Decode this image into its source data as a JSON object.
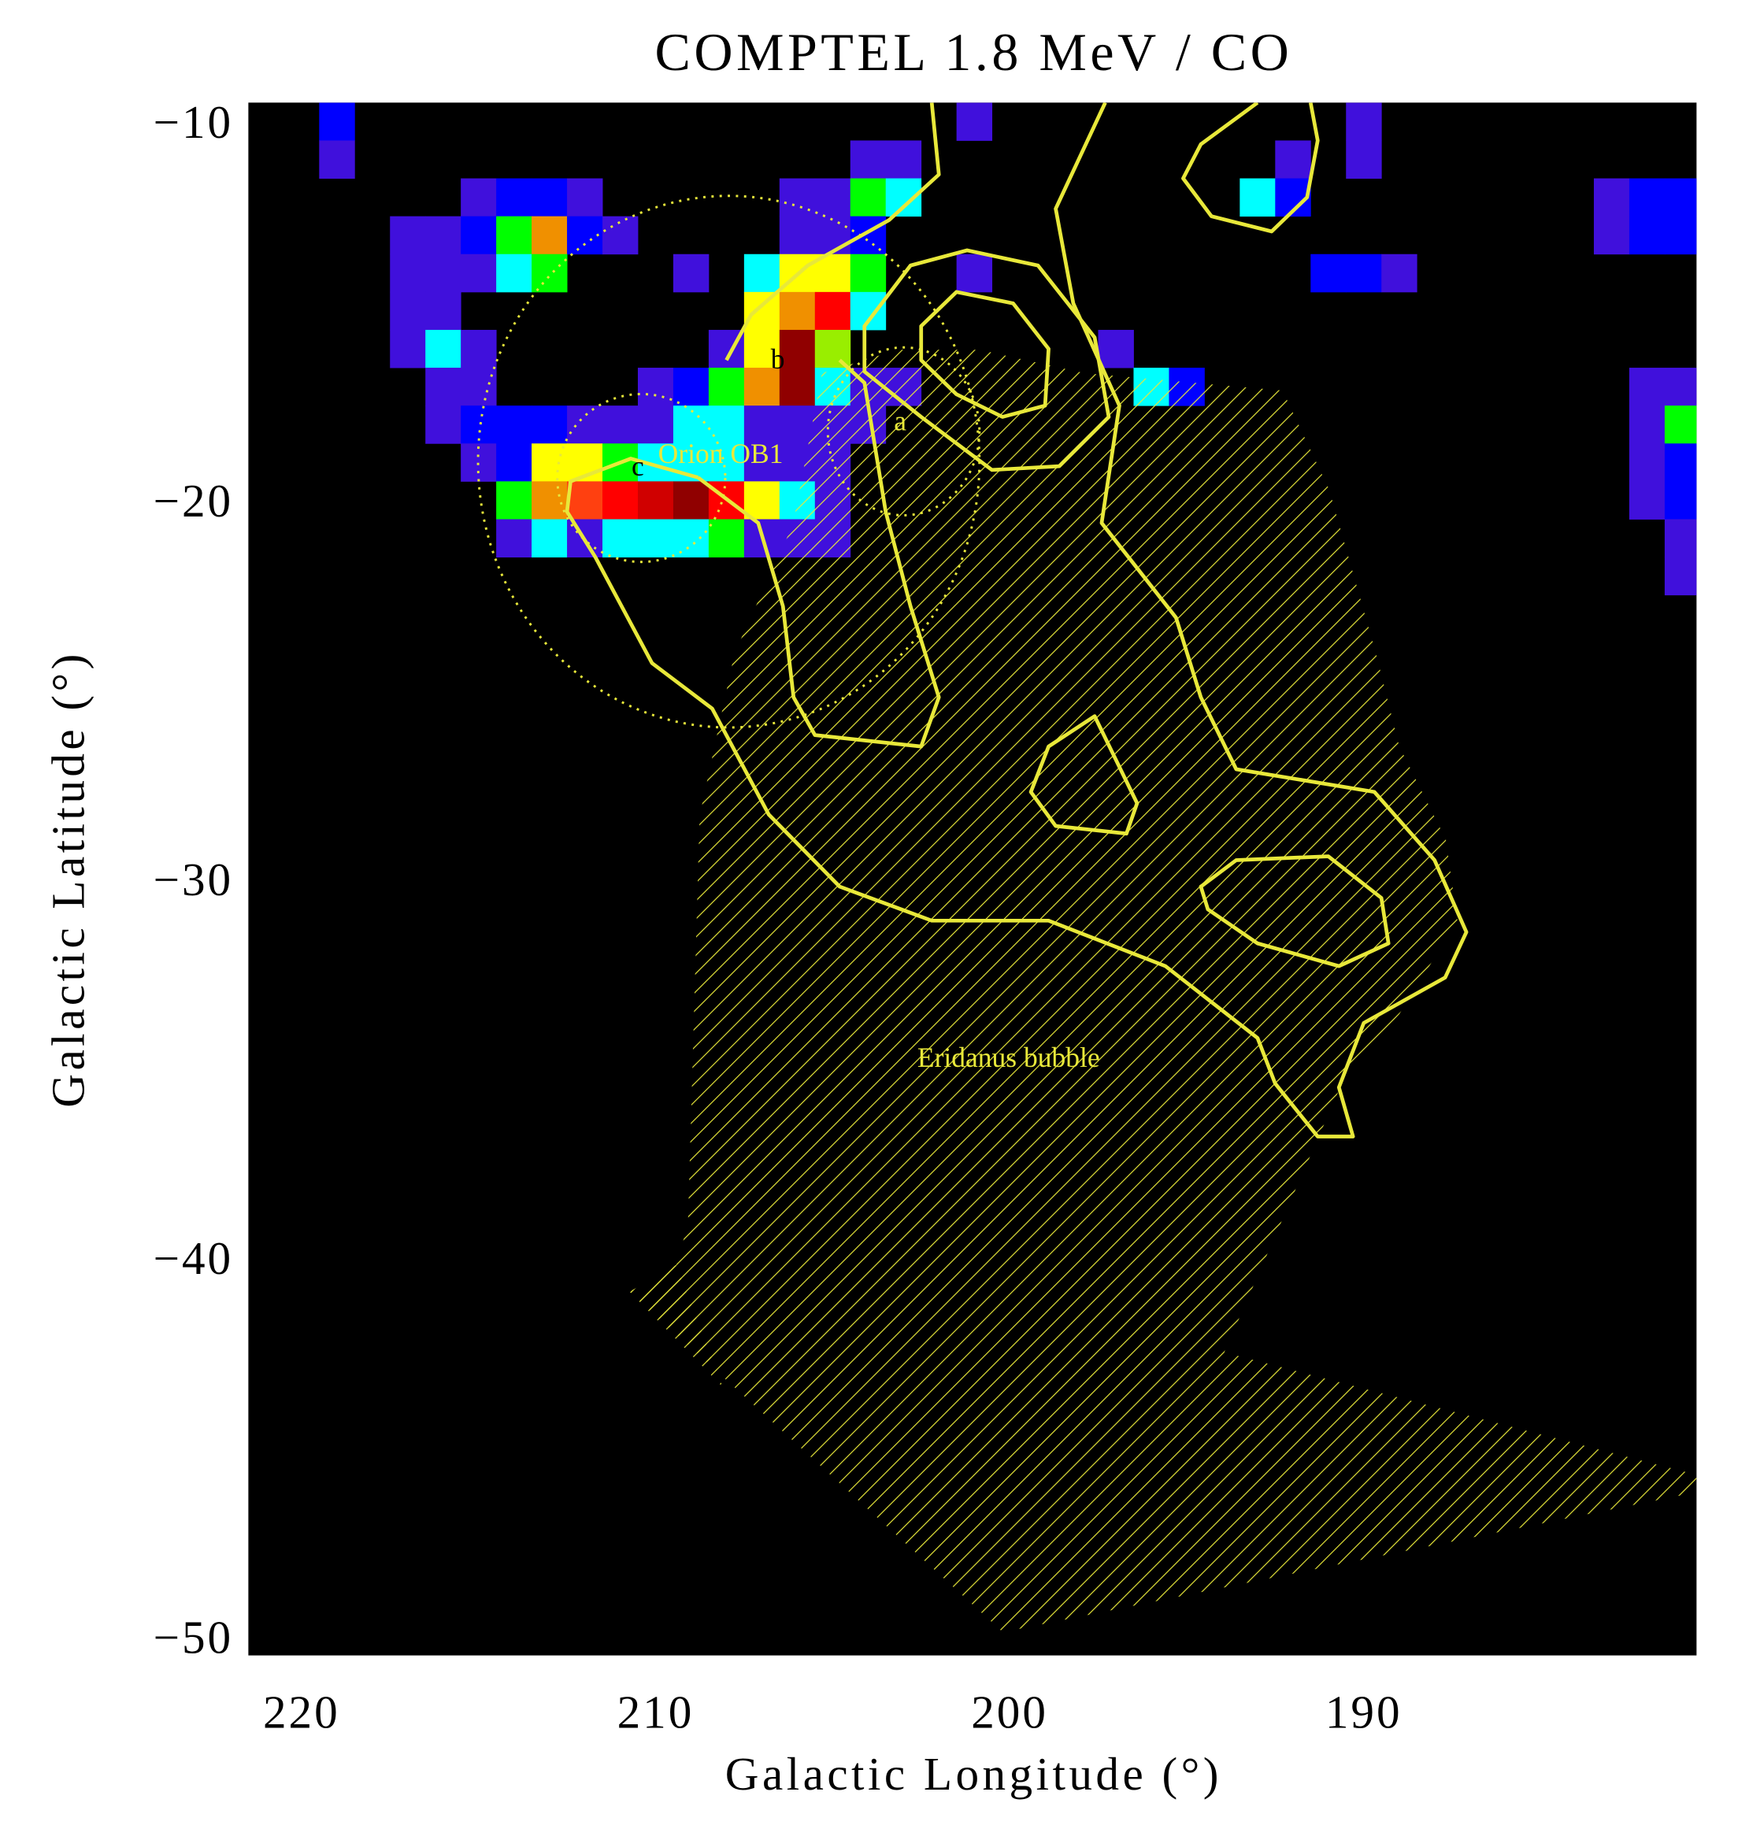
{
  "chart_data": {
    "type": "heatmap",
    "title": "COMPTEL 1.8 MeV  / CO",
    "x_label": "Galactic Longitude (°)",
    "y_label": "Galactic Latitude (°)",
    "xlim": [
      221.5,
      180.6
    ],
    "ylim": [
      -9.5,
      -50.5
    ],
    "xticks": [
      220,
      210,
      200,
      190
    ],
    "yticks": [
      {
        "value": -10,
        "label": "−10"
      },
      {
        "value": -20,
        "label": "−20"
      },
      {
        "value": -30,
        "label": "−30"
      },
      {
        "value": -40,
        "label": "−40"
      },
      {
        "value": -50,
        "label": "−50"
      }
    ],
    "background": "#000000",
    "colors": [
      "#4010dc",
      "#0000ff",
      "#00ffff",
      "#00ff00",
      "#99ee00",
      "#ffff00",
      "#f09000",
      "#ff4010",
      "#ff0000",
      "#d00000",
      "#900000"
    ],
    "cells": [
      [
        219,
        -10,
        2
      ],
      [
        201,
        -10,
        1
      ],
      [
        190,
        -10,
        1
      ],
      [
        219,
        -11,
        1
      ],
      [
        204,
        -11,
        1
      ],
      [
        203,
        -11,
        1
      ],
      [
        192,
        -11,
        1
      ],
      [
        190,
        -11,
        1
      ],
      [
        215,
        -12,
        1
      ],
      [
        214,
        -12,
        2
      ],
      [
        213,
        -12,
        2
      ],
      [
        212,
        -12,
        1
      ],
      [
        206,
        -12,
        1
      ],
      [
        205,
        -12,
        1
      ],
      [
        204,
        -12,
        4
      ],
      [
        203,
        -12,
        3
      ],
      [
        193,
        -12,
        3
      ],
      [
        192,
        -12,
        2
      ],
      [
        183,
        -12,
        1
      ],
      [
        182,
        -12,
        2
      ],
      [
        181,
        -12,
        2
      ],
      [
        217,
        -13,
        1
      ],
      [
        216,
        -13,
        1
      ],
      [
        215,
        -13,
        2
      ],
      [
        214,
        -13,
        4
      ],
      [
        213,
        -13,
        7
      ],
      [
        212,
        -13,
        2
      ],
      [
        211,
        -13,
        1
      ],
      [
        206,
        -13,
        1
      ],
      [
        205,
        -13,
        1
      ],
      [
        204,
        -13,
        2
      ],
      [
        183,
        -13,
        1
      ],
      [
        182,
        -13,
        2
      ],
      [
        181,
        -13,
        2
      ],
      [
        217,
        -14,
        1
      ],
      [
        216,
        -14,
        1
      ],
      [
        215,
        -14,
        1
      ],
      [
        214,
        -14,
        3
      ],
      [
        213,
        -14,
        4
      ],
      [
        209,
        -14,
        1
      ],
      [
        207,
        -14,
        3
      ],
      [
        206,
        -14,
        6
      ],
      [
        205,
        -14,
        6
      ],
      [
        204,
        -14,
        4
      ],
      [
        201,
        -14,
        1
      ],
      [
        191,
        -14,
        2
      ],
      [
        190,
        -14,
        2
      ],
      [
        189,
        -14,
        1
      ],
      [
        217,
        -15,
        1
      ],
      [
        216,
        -15,
        1
      ],
      [
        207,
        -15,
        6
      ],
      [
        206,
        -15,
        7
      ],
      [
        205,
        -15,
        9
      ],
      [
        204,
        -15,
        3
      ],
      [
        217,
        -16,
        1
      ],
      [
        216,
        -16,
        3
      ],
      [
        215,
        -16,
        1
      ],
      [
        208,
        -16,
        1
      ],
      [
        207,
        -16,
        6
      ],
      [
        206,
        -16,
        11
      ],
      [
        205,
        -16,
        5
      ],
      [
        197,
        -16,
        1
      ],
      [
        216,
        -17,
        1
      ],
      [
        215,
        -17,
        1
      ],
      [
        210,
        -17,
        1
      ],
      [
        209,
        -17,
        2
      ],
      [
        208,
        -17,
        4
      ],
      [
        207,
        -17,
        7
      ],
      [
        206,
        -17,
        11
      ],
      [
        205,
        -17,
        3
      ],
      [
        204,
        -17,
        1
      ],
      [
        203,
        -17,
        1
      ],
      [
        196,
        -17,
        3
      ],
      [
        195,
        -17,
        2
      ],
      [
        182,
        -17,
        1
      ],
      [
        181,
        -17,
        1
      ],
      [
        180,
        -17,
        1
      ],
      [
        216,
        -18,
        1
      ],
      [
        215,
        -18,
        2
      ],
      [
        214,
        -18,
        2
      ],
      [
        213,
        -18,
        2
      ],
      [
        212,
        -18,
        1
      ],
      [
        211,
        -18,
        1
      ],
      [
        210,
        -18,
        1
      ],
      [
        209,
        -18,
        3
      ],
      [
        208,
        -18,
        3
      ],
      [
        207,
        -18,
        1
      ],
      [
        206,
        -18,
        1
      ],
      [
        205,
        -18,
        1
      ],
      [
        204,
        -18,
        1
      ],
      [
        182,
        -18,
        1
      ],
      [
        181,
        -18,
        4
      ],
      [
        180,
        -18,
        2
      ],
      [
        215,
        -19,
        1
      ],
      [
        214,
        -19,
        2
      ],
      [
        213,
        -19,
        6
      ],
      [
        212,
        -19,
        6
      ],
      [
        211,
        -19,
        4
      ],
      [
        210,
        -19,
        3
      ],
      [
        209,
        -19,
        3
      ],
      [
        208,
        -19,
        3
      ],
      [
        207,
        -19,
        1
      ],
      [
        206,
        -19,
        1
      ],
      [
        205,
        -19,
        1
      ],
      [
        182,
        -19,
        1
      ],
      [
        181,
        -19,
        2
      ],
      [
        214,
        -20,
        4
      ],
      [
        213,
        -20,
        7
      ],
      [
        212,
        -20,
        8
      ],
      [
        211,
        -20,
        9
      ],
      [
        210,
        -20,
        10
      ],
      [
        209,
        -20,
        11
      ],
      [
        208,
        -20,
        9
      ],
      [
        207,
        -20,
        6
      ],
      [
        206,
        -20,
        3
      ],
      [
        205,
        -20,
        1
      ],
      [
        182,
        -20,
        1
      ],
      [
        181,
        -20,
        2
      ],
      [
        214,
        -21,
        1
      ],
      [
        213,
        -21,
        3
      ],
      [
        212,
        -21,
        1
      ],
      [
        211,
        -21,
        3
      ],
      [
        210,
        -21,
        3
      ],
      [
        209,
        -21,
        3
      ],
      [
        208,
        -21,
        4
      ],
      [
        207,
        -21,
        1
      ],
      [
        206,
        -21,
        1
      ],
      [
        205,
        -21,
        1
      ],
      [
        181,
        -21,
        1
      ],
      [
        181,
        -22,
        1
      ]
    ],
    "contour_color": "#e8e83a",
    "contours": [
      {
        "closed": false,
        "x": [
          197.3,
          198.7,
          198.2,
          196.9,
          197.4,
          195.3,
          194.6,
          193.6,
          189.7,
          188.0,
          187.1,
          187.7,
          190.0,
          190.7,
          190.3,
          191.3,
          192.5,
          193.0,
          195.6,
          198.9,
          202.2,
          204.8,
          206.8,
          208.4,
          210.1,
          211.7,
          212.5,
          212.4,
          210.7,
          208.8
        ],
        "y": [
          -9.5,
          -12.3,
          -14.8,
          -17.5,
          -20.6,
          -23.1,
          -25.2,
          -27.1,
          -27.7,
          -29.5,
          -31.4,
          -32.6,
          -33.8,
          -35.5,
          -36.8,
          -36.8,
          -35.4,
          -34.2,
          -32.3,
          -31.1,
          -31.1,
          -30.2,
          -28.3,
          -25.5,
          -24.3,
          -21.5,
          -20.3,
          -19.5,
          -18.9,
          -19.4
        ]
      },
      {
        "closed": false,
        "x": [
          208.8,
          207.1,
          206.4,
          206.1,
          205.5,
          202.5,
          202.0,
          202.8,
          203.5,
          204.1,
          204.8
        ],
        "y": [
          -19.4,
          -20.6,
          -22.8,
          -25.2,
          -26.2,
          -26.5,
          -25.2,
          -22.8,
          -20.3,
          -16.9,
          -16.3
        ]
      },
      {
        "closed": false,
        "x": [
          202.2,
          202.0,
          203.4,
          205.7,
          207.3,
          208.0
        ],
        "y": [
          -9.5,
          -11.4,
          -12.6,
          -13.8,
          -15.1,
          -16.3
        ]
      },
      {
        "closed": true,
        "x": [
          202.5,
          201.5,
          199.9,
          198.9,
          199.0,
          200.2,
          201.5,
          202.5
        ],
        "y": [
          -15.4,
          -14.5,
          -14.8,
          -16.0,
          -17.5,
          -17.8,
          -17.2,
          -16.3
        ]
      },
      {
        "closed": true,
        "x": [
          204.1,
          202.8,
          201.2,
          199.2,
          197.6,
          197.2,
          198.6,
          200.5,
          202.5,
          204.1
        ],
        "y": [
          -15.4,
          -13.8,
          -13.4,
          -13.8,
          -15.7,
          -17.8,
          -19.1,
          -19.2,
          -17.8,
          -16.6
        ]
      },
      {
        "closed": false,
        "x": [
          193.0,
          194.6,
          195.1,
          194.3,
          192.6,
          191.6,
          191.3,
          191.5
        ],
        "y": [
          -9.5,
          -10.6,
          -11.5,
          -12.5,
          -12.9,
          -12.0,
          -10.5,
          -9.5
        ]
      },
      {
        "closed": true,
        "x": [
          198.9,
          197.6,
          196.4,
          196.7,
          198.7,
          199.4
        ],
        "y": [
          -26.5,
          -25.7,
          -28.0,
          -28.8,
          -28.6,
          -27.7
        ]
      },
      {
        "closed": true,
        "x": [
          194.6,
          193.6,
          191.0,
          189.5,
          189.3,
          190.7,
          193.0,
          194.4
        ],
        "y": [
          -30.2,
          -29.5,
          -29.4,
          -30.5,
          -31.7,
          -32.3,
          -31.7,
          -30.8
        ]
      }
    ],
    "annotations": {
      "orion": "Orion OB1",
      "a": "a",
      "b": "b",
      "c": "c",
      "eridanus": "Eridanus bubble"
    }
  }
}
